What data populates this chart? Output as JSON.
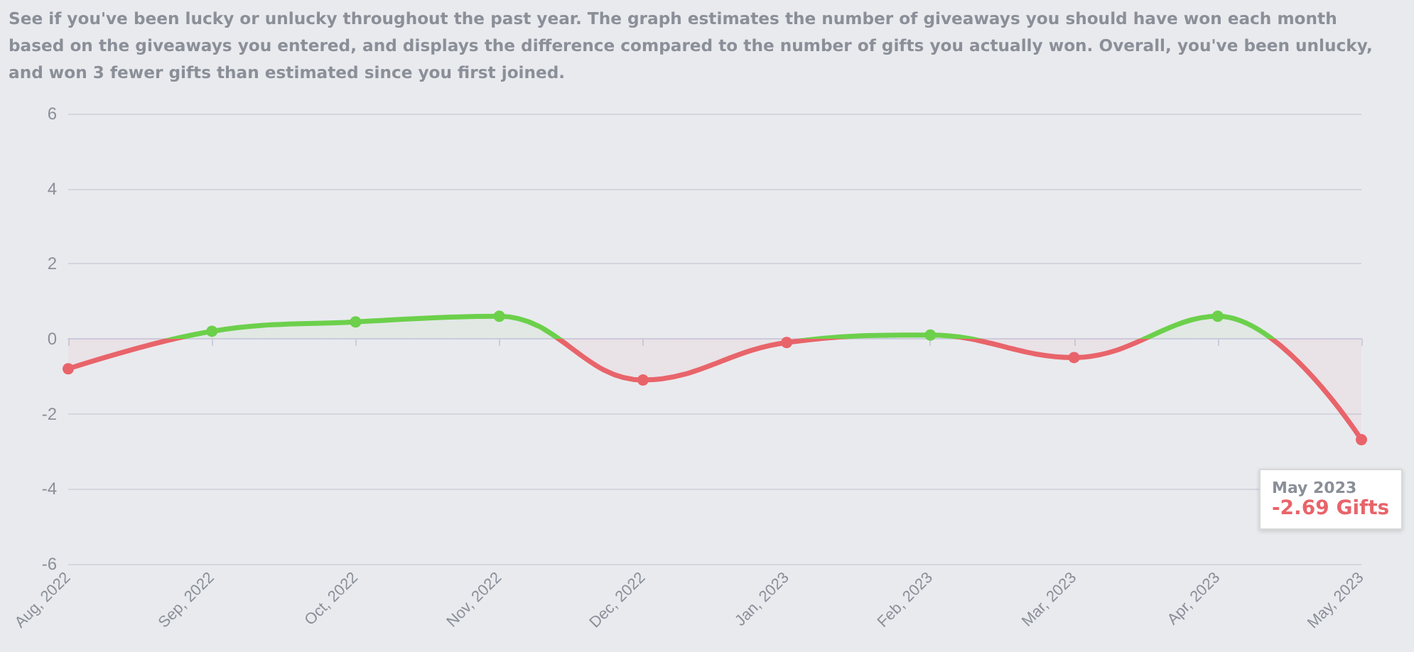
{
  "chart_data": {
    "type": "area",
    "title": "See if you've been lucky or unlucky throughout the past year. The graph estimates the number of giveaways you should have won each month based on the giveaways you entered, and displays the difference compared to the number of gifts you actually won. Overall, you've been unlucky, and won 3 fewer gifts than estimated since you first joined.",
    "categories": [
      "Aug, 2022",
      "Sep, 2022",
      "Oct, 2022",
      "Nov, 2022",
      "Dec, 2022",
      "Jan, 2023",
      "Feb, 2023",
      "Mar, 2023",
      "Apr, 2023",
      "May, 2023"
    ],
    "values": [
      -0.8,
      0.2,
      0.45,
      0.6,
      -1.1,
      -0.1,
      0.1,
      -0.5,
      0.6,
      -2.69
    ],
    "colors": [
      "#e8646a",
      "#6cd04b",
      "#6cd04b",
      "#6cd04b",
      "#e8646a",
      "#e8646a",
      "#6cd04b",
      "#e8646a",
      "#6cd04b",
      "#e8646a"
    ],
    "ylim": [
      -6,
      6
    ],
    "yticks": [
      -6,
      -4,
      -2,
      0,
      2,
      4,
      6
    ],
    "grid": "y",
    "marker": "circle",
    "annotations": [
      {
        "text": "May 2023",
        "x": "May, 2023",
        "y": -2.69
      },
      {
        "text": "-2.69 Gifts",
        "x": "May, 2023",
        "y": -2.69
      }
    ]
  }
}
